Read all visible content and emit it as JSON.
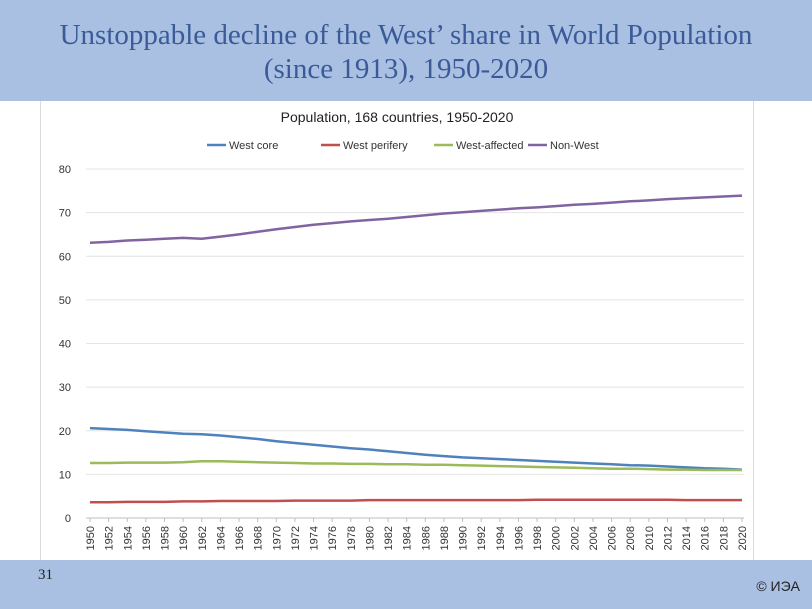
{
  "slide": {
    "title_line1": "Unstoppable decline of the West’ share in World Population",
    "title_line2": "(since 1913), 1950-2020",
    "number": "31",
    "copyright": "© ИЭА"
  },
  "chart_data": {
    "type": "line",
    "title": "Population, 168 countries, 1950-2020",
    "xlabel": "",
    "ylabel": "",
    "ylim": [
      0,
      80
    ],
    "yticks": [
      0,
      10,
      20,
      30,
      40,
      50,
      60,
      70,
      80
    ],
    "grid": "horizontal",
    "legend": "top",
    "categories": [
      "1950",
      "1952",
      "1954",
      "1956",
      "1958",
      "1960",
      "1962",
      "1964",
      "1966",
      "1968",
      "1970",
      "1972",
      "1974",
      "1976",
      "1978",
      "1980",
      "1982",
      "1984",
      "1986",
      "1988",
      "1990",
      "1992",
      "1994",
      "1996",
      "1998",
      "2000",
      "2002",
      "2004",
      "2006",
      "2008",
      "2010",
      "2012",
      "2014",
      "2016",
      "2018",
      "2020"
    ],
    "series": [
      {
        "name": "West core",
        "color": "#4f81bd",
        "values": [
          20.6,
          20.4,
          20.2,
          19.9,
          19.6,
          19.3,
          19.2,
          18.9,
          18.5,
          18.1,
          17.6,
          17.2,
          16.8,
          16.4,
          16.0,
          15.7,
          15.3,
          14.9,
          14.5,
          14.2,
          13.9,
          13.7,
          13.5,
          13.3,
          13.1,
          12.9,
          12.7,
          12.5,
          12.3,
          12.1,
          12.0,
          11.8,
          11.6,
          11.4,
          11.3,
          11.1
        ]
      },
      {
        "name": "West perifery",
        "color": "#c0504d",
        "values": [
          3.6,
          3.6,
          3.7,
          3.7,
          3.7,
          3.8,
          3.8,
          3.9,
          3.9,
          3.9,
          3.9,
          4.0,
          4.0,
          4.0,
          4.0,
          4.1,
          4.1,
          4.1,
          4.1,
          4.1,
          4.1,
          4.1,
          4.1,
          4.1,
          4.2,
          4.2,
          4.2,
          4.2,
          4.2,
          4.2,
          4.2,
          4.2,
          4.1,
          4.1,
          4.1,
          4.1
        ]
      },
      {
        "name": "West-affected",
        "color": "#9bbb59",
        "values": [
          12.6,
          12.6,
          12.7,
          12.7,
          12.7,
          12.8,
          13.0,
          13.0,
          12.9,
          12.8,
          12.7,
          12.6,
          12.5,
          12.5,
          12.4,
          12.4,
          12.3,
          12.3,
          12.2,
          12.2,
          12.1,
          12.0,
          11.9,
          11.8,
          11.7,
          11.6,
          11.5,
          11.4,
          11.3,
          11.3,
          11.2,
          11.1,
          11.1,
          11.0,
          11.0,
          11.0
        ]
      },
      {
        "name": "Non-West",
        "color": "#8064a2",
        "values": [
          63.1,
          63.3,
          63.6,
          63.8,
          64.0,
          64.2,
          64.0,
          64.5,
          65.0,
          65.6,
          66.2,
          66.7,
          67.2,
          67.6,
          68.0,
          68.3,
          68.6,
          69.0,
          69.4,
          69.8,
          70.1,
          70.4,
          70.7,
          71.0,
          71.2,
          71.5,
          71.8,
          72.0,
          72.3,
          72.6,
          72.8,
          73.1,
          73.3,
          73.5,
          73.7,
          73.9
        ]
      }
    ]
  }
}
